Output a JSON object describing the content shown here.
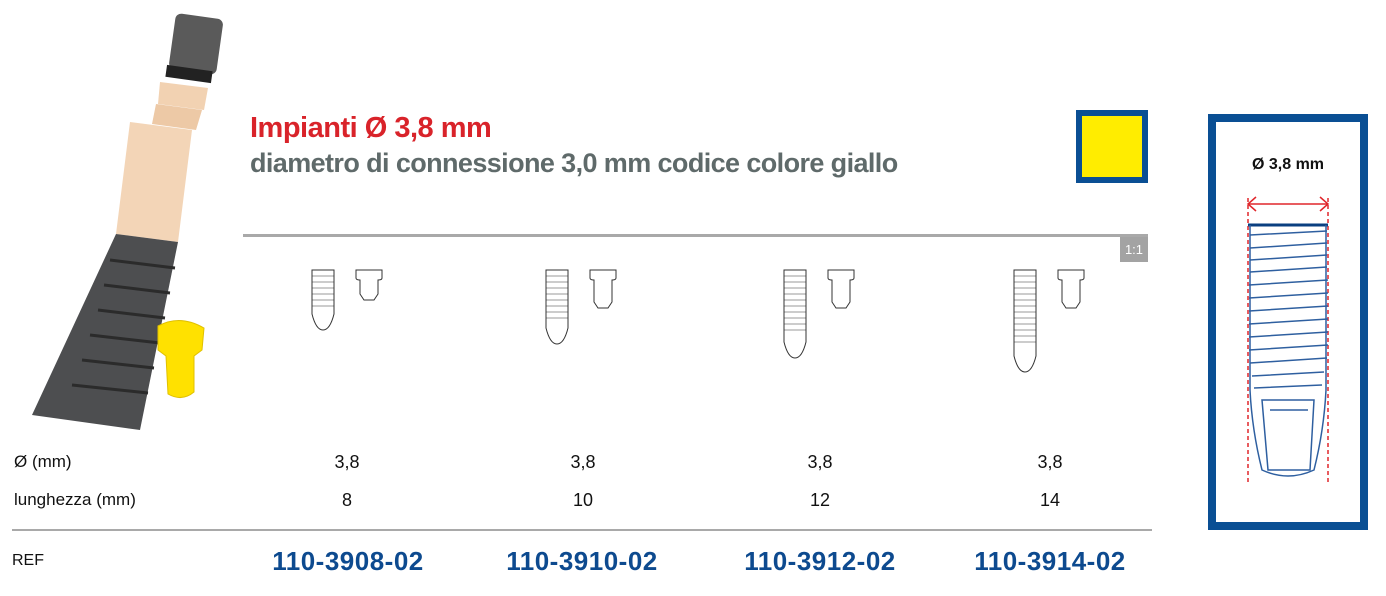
{
  "header": {
    "title": "Impianti Ø 3,8 mm",
    "subtitle": "diametro di connessione 3,0 mm codice colore giallo",
    "color_code": "#ffed00",
    "scale": "1:1"
  },
  "table": {
    "rows": [
      {
        "label": "Ø (mm)",
        "values": [
          "3,8",
          "3,8",
          "3,8",
          "3,8"
        ]
      },
      {
        "label": "lunghezza (mm)",
        "values": [
          "8",
          "10",
          "12",
          "14"
        ]
      }
    ],
    "ref_label": "REF",
    "refs": [
      "110-3908-02",
      "110-3910-02",
      "110-3912-02",
      "110-3914-02"
    ]
  },
  "detail": {
    "diameter_label": "Ø 3,8 mm"
  },
  "colors": {
    "title": "#d9232a",
    "subtitle": "#5f6a6a",
    "ref": "#0d4a8f",
    "frame": "#0a4f94"
  }
}
